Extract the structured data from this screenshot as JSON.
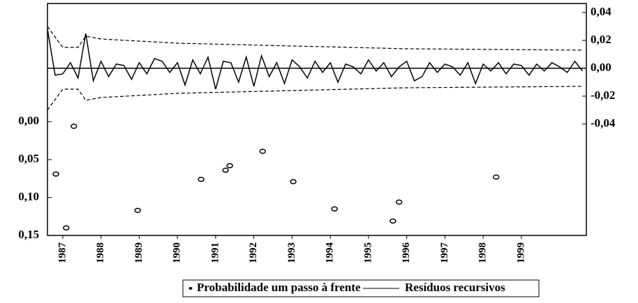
{
  "chart_data": {
    "type": "line",
    "xlim": [
      1986.6,
      2000.7
    ],
    "xticks": [
      1987,
      1988,
      1989,
      1990,
      1991,
      1992,
      1993,
      1994,
      1995,
      1996,
      1997,
      1998,
      1999
    ],
    "ylim": [
      0.15,
      -0.156
    ],
    "yticks": [
      {
        "value": 0,
        "label": "0,00"
      },
      {
        "value": 0.05,
        "label": "0,05"
      },
      {
        "value": 0.1,
        "label": "0,10"
      },
      {
        "value": 0.15,
        "label": "0,15"
      }
    ],
    "y2lim": [
      -0.12,
      0.0465
    ],
    "y2ticks": [
      {
        "value": 0.04,
        "label": "0,04"
      },
      {
        "value": 0.02,
        "label": "0,02"
      },
      {
        "value": 0,
        "label": "0,00"
      },
      {
        "value": -0.02,
        "label": "-0,02"
      },
      {
        "value": -0.04,
        "label": "-0,04"
      }
    ],
    "legend": "bottom",
    "series": [
      {
        "name": "Probabilidade um passo à frente",
        "type": "scatter",
        "axis": "y",
        "color": "#000000",
        "x": [
          1986.82,
          1987.09,
          1987.29,
          1988.96,
          1990.62,
          1991.26,
          1991.37,
          1992.23,
          1993.03,
          1994.11,
          1995.64,
          1995.8,
          1998.34
        ],
        "values": [
          0.069,
          0.14,
          0.006,
          0.117,
          0.076,
          0.064,
          0.058,
          0.039,
          0.079,
          0.115,
          0.131,
          0.106,
          0.073
        ]
      },
      {
        "name": "Resíduos recursivos",
        "type": "line",
        "axis": "y2",
        "color": "#000000",
        "x": [
          1986.6,
          1986.8,
          1987.0,
          1987.2,
          1987.4,
          1987.6,
          1987.8,
          1988.0,
          1988.2,
          1988.4,
          1988.6,
          1988.8,
          1989.0,
          1989.2,
          1989.4,
          1989.6,
          1989.8,
          1990.0,
          1990.2,
          1990.4,
          1990.6,
          1990.8,
          1991.0,
          1991.2,
          1991.4,
          1991.6,
          1991.8,
          1992.0,
          1992.2,
          1992.4,
          1992.6,
          1992.8,
          1993.0,
          1993.2,
          1993.4,
          1993.6,
          1993.8,
          1994.0,
          1994.2,
          1994.4,
          1994.6,
          1994.8,
          1995.0,
          1995.2,
          1995.4,
          1995.6,
          1995.8,
          1996.0,
          1996.2,
          1996.4,
          1996.6,
          1996.8,
          1997.0,
          1997.2,
          1997.4,
          1997.6,
          1997.8,
          1998.0,
          1998.2,
          1998.4,
          1998.6,
          1998.8,
          1999.0,
          1999.2,
          1999.4,
          1999.6,
          1999.8,
          2000.0,
          2000.2,
          2000.4,
          2000.6
        ],
        "values": [
          0.028,
          -0.005,
          -0.004,
          0.004,
          -0.007,
          0.025,
          -0.009,
          0.005,
          -0.006,
          0.003,
          0.002,
          -0.008,
          0.004,
          -0.004,
          0.007,
          0.005,
          -0.003,
          0.004,
          -0.012,
          0.006,
          -0.004,
          0.008,
          -0.015,
          0.005,
          0.004,
          -0.01,
          0.008,
          -0.013,
          0.009,
          -0.006,
          0.004,
          -0.011,
          0.006,
          0.001,
          -0.007,
          0.005,
          -0.003,
          0.004,
          -0.01,
          0.003,
          0.001,
          -0.004,
          0.006,
          -0.002,
          0.004,
          -0.006,
          0.001,
          0.005,
          -0.009,
          -0.006,
          0.004,
          -0.003,
          0.003,
          0.001,
          -0.005,
          0.004,
          -0.011,
          0.003,
          -0.002,
          0.004,
          -0.004,
          0.003,
          0.002,
          -0.005,
          0.003,
          -0.002,
          0.004,
          0.001,
          -0.003,
          0.005,
          -0.002
        ]
      },
      {
        "type": "line",
        "style": "dashed",
        "axis": "y2",
        "color": "#000000",
        "x": [
          1986.6,
          1987.0,
          1987.4,
          1987.6,
          1988.0,
          1990.0,
          1993.0,
          1996.0,
          2000.6
        ],
        "values": [
          0.03,
          0.015,
          0.015,
          0.023,
          0.021,
          0.018,
          0.016,
          0.014,
          0.013
        ]
      },
      {
        "type": "line",
        "style": "dashed",
        "axis": "y2",
        "color": "#000000",
        "x": [
          1986.6,
          1987.0,
          1987.4,
          1987.6,
          1988.0,
          1990.0,
          1993.0,
          1996.0,
          2000.6
        ],
        "values": [
          -0.03,
          -0.015,
          -0.015,
          -0.023,
          -0.021,
          -0.018,
          -0.016,
          -0.014,
          -0.013
        ]
      }
    ]
  }
}
